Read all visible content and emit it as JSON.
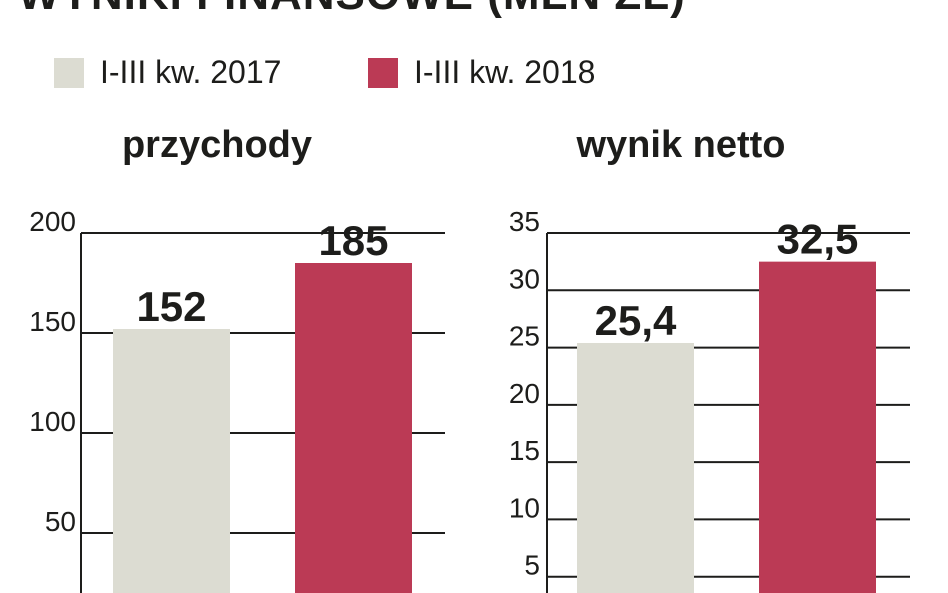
{
  "title": "WYNIKI FINANSOWE (MLN ZŁ)",
  "legend": [
    {
      "label": "I-III kw. 2017",
      "color": "#dcdcd2"
    },
    {
      "label": "I-III kw. 2018",
      "color": "#bb3a55"
    }
  ],
  "colors": {
    "grid": "#1d1d1b",
    "text": "#1d1d1b"
  },
  "chart_data": [
    {
      "type": "bar",
      "title": "przychody",
      "categories": [
        "I-III kw. 2017",
        "I-III kw. 2018"
      ],
      "values": [
        152,
        185
      ],
      "value_labels": [
        "152",
        "185"
      ],
      "yticks": [
        50,
        100,
        150,
        200
      ],
      "ytick_labels": [
        "50",
        "100",
        "150",
        "200"
      ],
      "ylim": [
        0,
        200
      ],
      "grid": true
    },
    {
      "type": "bar",
      "title": "wynik netto",
      "categories": [
        "I-III kw. 2017",
        "I-III kw. 2018"
      ],
      "values": [
        25.4,
        32.5
      ],
      "value_labels": [
        "25,4",
        "32,5"
      ],
      "yticks": [
        5,
        10,
        15,
        20,
        25,
        30,
        35
      ],
      "ytick_labels": [
        "5",
        "10",
        "15",
        "20",
        "25",
        "30",
        "35"
      ],
      "ylim": [
        0,
        35
      ],
      "grid": true
    }
  ]
}
